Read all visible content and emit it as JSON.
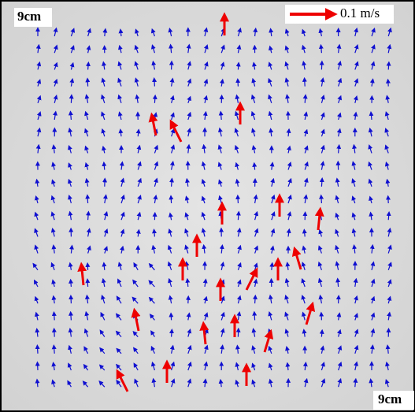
{
  "labels": {
    "top_left": "9cm",
    "bottom_right": "9cm",
    "scale": "0.1 m/s"
  }
}
